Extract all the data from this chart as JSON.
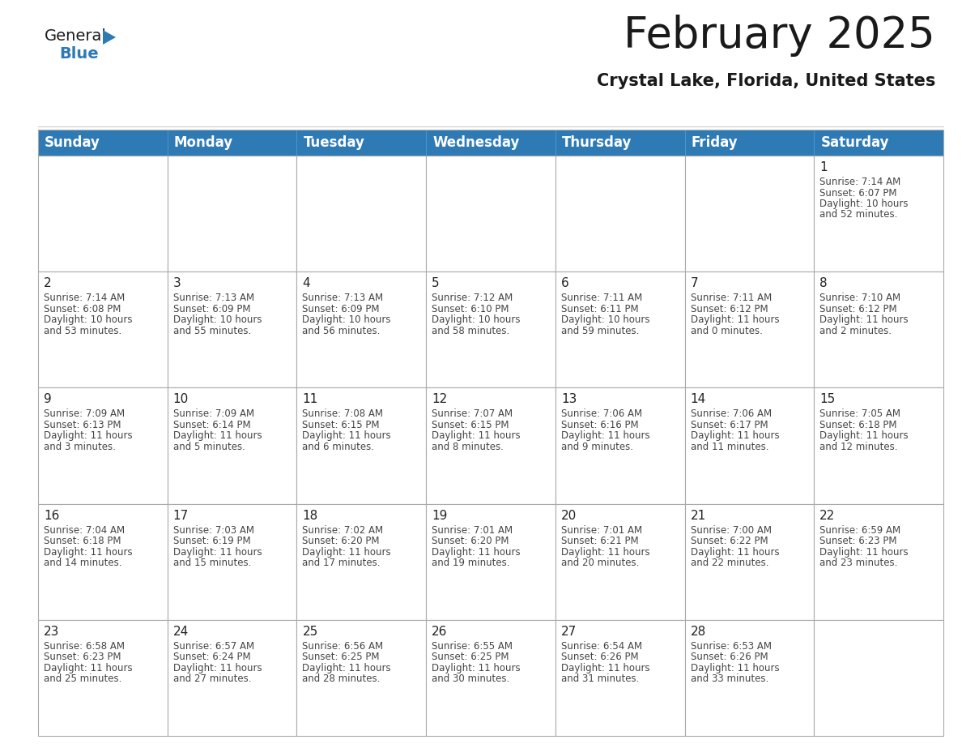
{
  "title": "February 2025",
  "subtitle": "Crystal Lake, Florida, United States",
  "header_color": "#2e7ab5",
  "header_text_color": "#ffffff",
  "cell_bg_color": "#ffffff",
  "border_color": "#aaaaaa",
  "text_color": "#444444",
  "day_names": [
    "Sunday",
    "Monday",
    "Tuesday",
    "Wednesday",
    "Thursday",
    "Friday",
    "Saturday"
  ],
  "title_fontsize": 38,
  "subtitle_fontsize": 15,
  "header_fontsize": 12,
  "day_num_fontsize": 11,
  "cell_text_fontsize": 8.5,
  "logo_color_general": "#1a1a1a",
  "logo_color_blue": "#2e7ab5",
  "days_data": [
    {
      "day": 1,
      "col": 6,
      "row": 0,
      "sunrise": "7:14 AM",
      "sunset": "6:07 PM",
      "daylight_hours": 10,
      "daylight_minutes": 52
    },
    {
      "day": 2,
      "col": 0,
      "row": 1,
      "sunrise": "7:14 AM",
      "sunset": "6:08 PM",
      "daylight_hours": 10,
      "daylight_minutes": 53
    },
    {
      "day": 3,
      "col": 1,
      "row": 1,
      "sunrise": "7:13 AM",
      "sunset": "6:09 PM",
      "daylight_hours": 10,
      "daylight_minutes": 55
    },
    {
      "day": 4,
      "col": 2,
      "row": 1,
      "sunrise": "7:13 AM",
      "sunset": "6:09 PM",
      "daylight_hours": 10,
      "daylight_minutes": 56
    },
    {
      "day": 5,
      "col": 3,
      "row": 1,
      "sunrise": "7:12 AM",
      "sunset": "6:10 PM",
      "daylight_hours": 10,
      "daylight_minutes": 58
    },
    {
      "day": 6,
      "col": 4,
      "row": 1,
      "sunrise": "7:11 AM",
      "sunset": "6:11 PM",
      "daylight_hours": 10,
      "daylight_minutes": 59
    },
    {
      "day": 7,
      "col": 5,
      "row": 1,
      "sunrise": "7:11 AM",
      "sunset": "6:12 PM",
      "daylight_hours": 11,
      "daylight_minutes": 0
    },
    {
      "day": 8,
      "col": 6,
      "row": 1,
      "sunrise": "7:10 AM",
      "sunset": "6:12 PM",
      "daylight_hours": 11,
      "daylight_minutes": 2
    },
    {
      "day": 9,
      "col": 0,
      "row": 2,
      "sunrise": "7:09 AM",
      "sunset": "6:13 PM",
      "daylight_hours": 11,
      "daylight_minutes": 3
    },
    {
      "day": 10,
      "col": 1,
      "row": 2,
      "sunrise": "7:09 AM",
      "sunset": "6:14 PM",
      "daylight_hours": 11,
      "daylight_minutes": 5
    },
    {
      "day": 11,
      "col": 2,
      "row": 2,
      "sunrise": "7:08 AM",
      "sunset": "6:15 PM",
      "daylight_hours": 11,
      "daylight_minutes": 6
    },
    {
      "day": 12,
      "col": 3,
      "row": 2,
      "sunrise": "7:07 AM",
      "sunset": "6:15 PM",
      "daylight_hours": 11,
      "daylight_minutes": 8
    },
    {
      "day": 13,
      "col": 4,
      "row": 2,
      "sunrise": "7:06 AM",
      "sunset": "6:16 PM",
      "daylight_hours": 11,
      "daylight_minutes": 9
    },
    {
      "day": 14,
      "col": 5,
      "row": 2,
      "sunrise": "7:06 AM",
      "sunset": "6:17 PM",
      "daylight_hours": 11,
      "daylight_minutes": 11
    },
    {
      "day": 15,
      "col": 6,
      "row": 2,
      "sunrise": "7:05 AM",
      "sunset": "6:18 PM",
      "daylight_hours": 11,
      "daylight_minutes": 12
    },
    {
      "day": 16,
      "col": 0,
      "row": 3,
      "sunrise": "7:04 AM",
      "sunset": "6:18 PM",
      "daylight_hours": 11,
      "daylight_minutes": 14
    },
    {
      "day": 17,
      "col": 1,
      "row": 3,
      "sunrise": "7:03 AM",
      "sunset": "6:19 PM",
      "daylight_hours": 11,
      "daylight_minutes": 15
    },
    {
      "day": 18,
      "col": 2,
      "row": 3,
      "sunrise": "7:02 AM",
      "sunset": "6:20 PM",
      "daylight_hours": 11,
      "daylight_minutes": 17
    },
    {
      "day": 19,
      "col": 3,
      "row": 3,
      "sunrise": "7:01 AM",
      "sunset": "6:20 PM",
      "daylight_hours": 11,
      "daylight_minutes": 19
    },
    {
      "day": 20,
      "col": 4,
      "row": 3,
      "sunrise": "7:01 AM",
      "sunset": "6:21 PM",
      "daylight_hours": 11,
      "daylight_minutes": 20
    },
    {
      "day": 21,
      "col": 5,
      "row": 3,
      "sunrise": "7:00 AM",
      "sunset": "6:22 PM",
      "daylight_hours": 11,
      "daylight_minutes": 22
    },
    {
      "day": 22,
      "col": 6,
      "row": 3,
      "sunrise": "6:59 AM",
      "sunset": "6:23 PM",
      "daylight_hours": 11,
      "daylight_minutes": 23
    },
    {
      "day": 23,
      "col": 0,
      "row": 4,
      "sunrise": "6:58 AM",
      "sunset": "6:23 PM",
      "daylight_hours": 11,
      "daylight_minutes": 25
    },
    {
      "day": 24,
      "col": 1,
      "row": 4,
      "sunrise": "6:57 AM",
      "sunset": "6:24 PM",
      "daylight_hours": 11,
      "daylight_minutes": 27
    },
    {
      "day": 25,
      "col": 2,
      "row": 4,
      "sunrise": "6:56 AM",
      "sunset": "6:25 PM",
      "daylight_hours": 11,
      "daylight_minutes": 28
    },
    {
      "day": 26,
      "col": 3,
      "row": 4,
      "sunrise": "6:55 AM",
      "sunset": "6:25 PM",
      "daylight_hours": 11,
      "daylight_minutes": 30
    },
    {
      "day": 27,
      "col": 4,
      "row": 4,
      "sunrise": "6:54 AM",
      "sunset": "6:26 PM",
      "daylight_hours": 11,
      "daylight_minutes": 31
    },
    {
      "day": 28,
      "col": 5,
      "row": 4,
      "sunrise": "6:53 AM",
      "sunset": "6:26 PM",
      "daylight_hours": 11,
      "daylight_minutes": 33
    }
  ]
}
